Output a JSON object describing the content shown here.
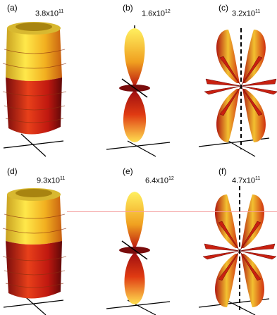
{
  "panels": [
    {
      "label": "(a)",
      "mantissa": "3.8x10",
      "exponent": "11"
    },
    {
      "label": "(b)",
      "mantissa": "1.6x10",
      "exponent": "12"
    },
    {
      "label": "(c)",
      "mantissa": "3.2x10",
      "exponent": "11"
    },
    {
      "label": "(d)",
      "mantissa": "9.3x10",
      "exponent": "11"
    },
    {
      "label": "(e)",
      "mantissa": "6.4x10",
      "exponent": "12"
    },
    {
      "label": "(f)",
      "mantissa": "4.7x10",
      "exponent": "11"
    }
  ],
  "colors": {
    "hot_dark": "#8a0f10",
    "hot_mid": "#e03a12",
    "hot_light": "#f6d63a",
    "hot_yellow": "#ffee55"
  }
}
